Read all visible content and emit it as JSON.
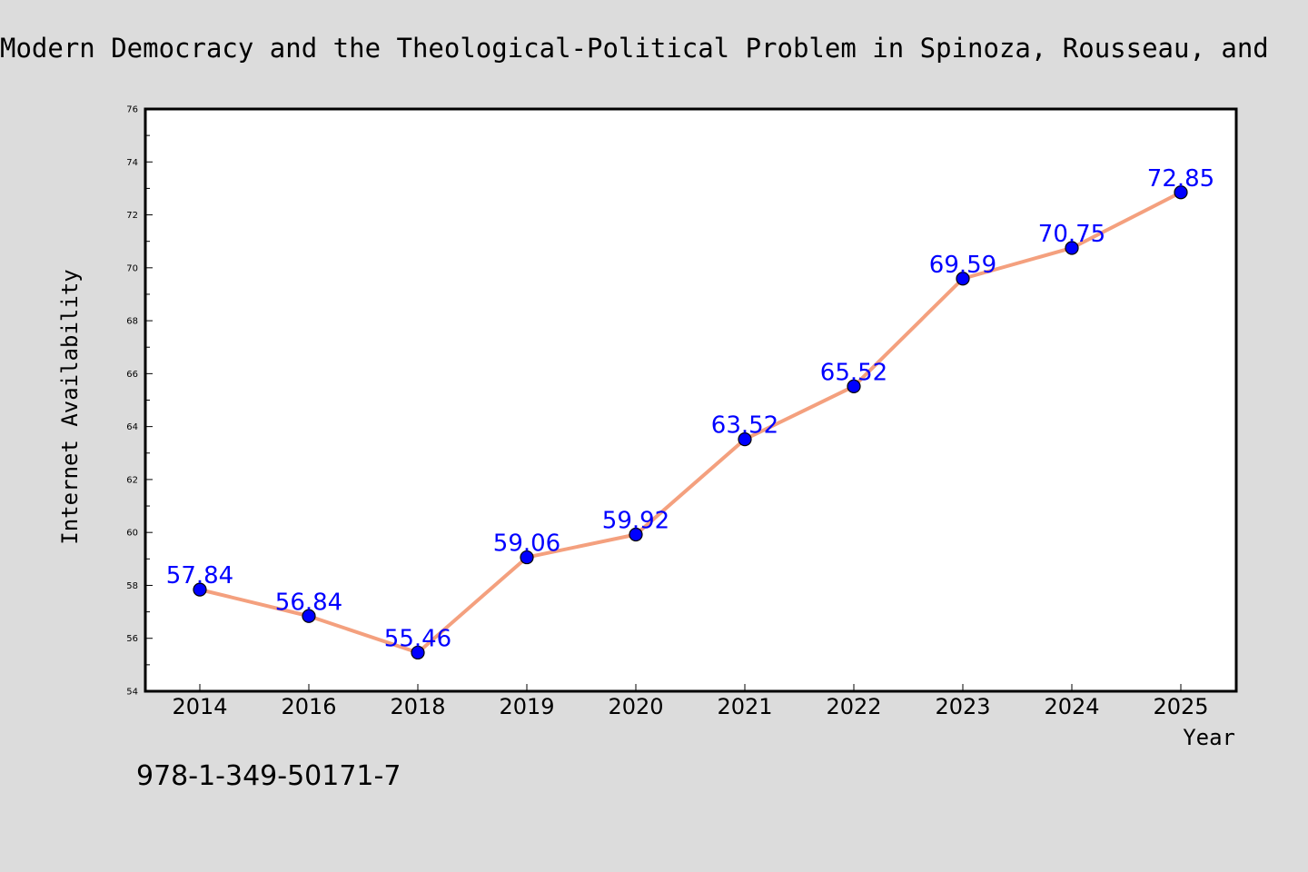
{
  "chart_data": {
    "type": "line",
    "title": "Modern Democracy and the Theological-Political Problem in Spinoza, Rousseau, and",
    "xlabel": "Year",
    "ylabel": "Internet Availability",
    "categories": [
      "2014",
      "2016",
      "2018",
      "2019",
      "2020",
      "2021",
      "2022",
      "2023",
      "2024",
      "2025"
    ],
    "series": [
      {
        "values": [
          57.84,
          56.84,
          55.46,
          59.06,
          59.92,
          63.52,
          65.52,
          69.59,
          70.75,
          72.85
        ],
        "labels": [
          "57.84",
          "56.84",
          "55.46",
          "59.06",
          "59.92",
          "63.52",
          "65.52",
          "69.59",
          "70.75",
          "72.85"
        ]
      }
    ],
    "ylim": [
      54,
      76
    ],
    "yticks": [
      "54",
      "56",
      "58",
      "60",
      "62",
      "64",
      "66",
      "68",
      "70",
      "72",
      "74",
      "76"
    ],
    "grid": false,
    "line_color": "#f4a07e",
    "marker_color": "#0000ff",
    "label_color": "#0000ff",
    "background_color": "#dcdcdc",
    "plot_background_color": "#ffffff"
  },
  "footer": {
    "isbn": "978-1-349-50171-7"
  }
}
